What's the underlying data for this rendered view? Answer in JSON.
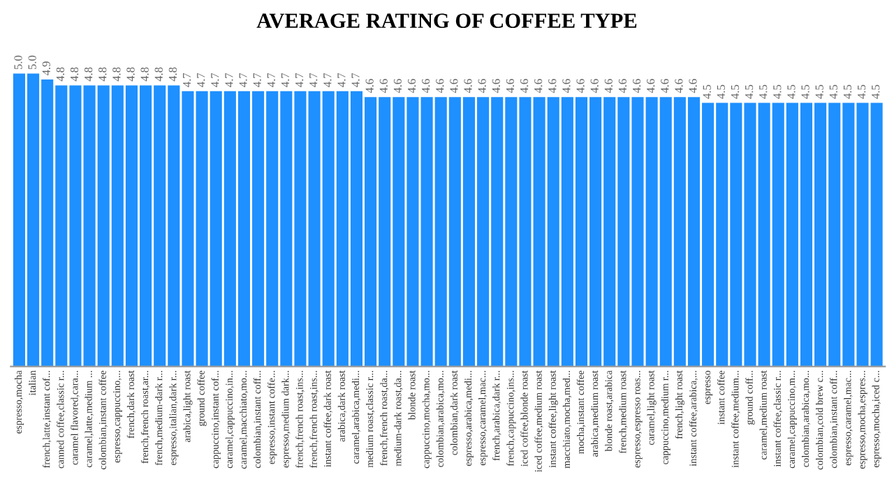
{
  "chart_data": {
    "type": "bar",
    "title": "AVERAGE RATING OF COFFEE TYPE",
    "categories": [
      "espresso,mocha",
      "italian",
      "french,latte,instant cof...",
      "canned coffee,classic r...",
      "caramel flavored,cara...",
      "caramel,latte,medium ...",
      "colombian,instant coffee",
      "espresso,cappuccino,...",
      "french,dark roast",
      "french,french roast,ar...",
      "french,medium-dark r...",
      "espresso,italian,dark r...",
      "arabica,light roast",
      "ground coffee",
      "cappuccino,instant cof...",
      "caramel,cappuccino,in...",
      "caramel,macchiato,mo...",
      "colombian,instant coff...",
      "espresso,instant coffe...",
      "espresso,medium dark...",
      "french,french roast,ins...",
      "french,french roast,ins...",
      "instant coffee,dark roast",
      "arabica,dark roast",
      "caramel,arabica,medi...",
      "medium roast,classic r...",
      "french,french roast,da...",
      "medium-dark roast,da...",
      "blonde roast",
      "cappuccino,mocha,mo...",
      "colombian,arabica,mo...",
      "colombian,dark roast",
      "espresso,arabica,medi...",
      "espresso,caramel,mac...",
      "french,arabica,dark r...",
      "french,cappuccino,ins...",
      "iced coffee,blonde roast",
      "iced coffee,medium roast",
      "instant coffee,light roast",
      "macchiato,mocha,med...",
      "mocha,instant coffee",
      "arabica,medium roast",
      "blonde roast,arabica",
      "french,medium roast",
      "espresso,espresso roas...",
      "caramel,light roast",
      "cappuccino,medium r...",
      "french,light roast",
      "instant coffee,arabica,...",
      "espresso",
      "instant coffee",
      "instant coffee,medium...",
      "ground coff...",
      "caramel,medium roast",
      "instant coffee,classic r...",
      "caramel,cappuccino,m...",
      "colombian,arabica,mo...",
      "colombian,cold brew c...",
      "colombian,instant coff...",
      "espresso,caramel,mac...",
      "espresso,mocha,espres...",
      "espresso,mocha,iced c..."
    ],
    "values": [
      5.0,
      5.0,
      4.9,
      4.8,
      4.8,
      4.8,
      4.8,
      4.8,
      4.8,
      4.8,
      4.8,
      4.8,
      4.7,
      4.7,
      4.7,
      4.7,
      4.7,
      4.7,
      4.7,
      4.7,
      4.7,
      4.7,
      4.7,
      4.7,
      4.7,
      4.6,
      4.6,
      4.6,
      4.6,
      4.6,
      4.6,
      4.6,
      4.6,
      4.6,
      4.6,
      4.6,
      4.6,
      4.6,
      4.6,
      4.6,
      4.6,
      4.6,
      4.6,
      4.6,
      4.6,
      4.6,
      4.6,
      4.6,
      4.6,
      4.5,
      4.5,
      4.5,
      4.5,
      4.5,
      4.5,
      4.5,
      4.5,
      4.5,
      4.5,
      4.5,
      4.5,
      4.5
    ],
    "value_labels": [
      "5.0",
      "5.0",
      "4.9",
      "4.8",
      "4.8",
      "4.8",
      "4.8",
      "4.8",
      "4.8",
      "4.8",
      "4.8",
      "4.8",
      "4.7",
      "4.7",
      "4.7",
      "4.7",
      "4.7",
      "4.7",
      "4.7",
      "4.7",
      "4.7",
      "4.7",
      "4.7",
      "4.7",
      "4.7",
      "4.6",
      "4.6",
      "4.6",
      "4.6",
      "4.6",
      "4.6",
      "4.6",
      "4.6",
      "4.6",
      "4.6",
      "4.6",
      "4.6",
      "4.6",
      "4.6",
      "4.6",
      "4.6",
      "4.6",
      "4.6",
      "4.6",
      "4.6",
      "4.6",
      "4.6",
      "4.6",
      "4.6",
      "4.5",
      "4.5",
      "4.5",
      "4.5",
      "4.5",
      "4.5",
      "4.5",
      "4.5",
      "4.5",
      "4.5",
      "4.5",
      "4.5",
      "4.5"
    ],
    "color": "#1e90ff",
    "tick_labels": "x",
    "grid": false,
    "legend": false
  }
}
